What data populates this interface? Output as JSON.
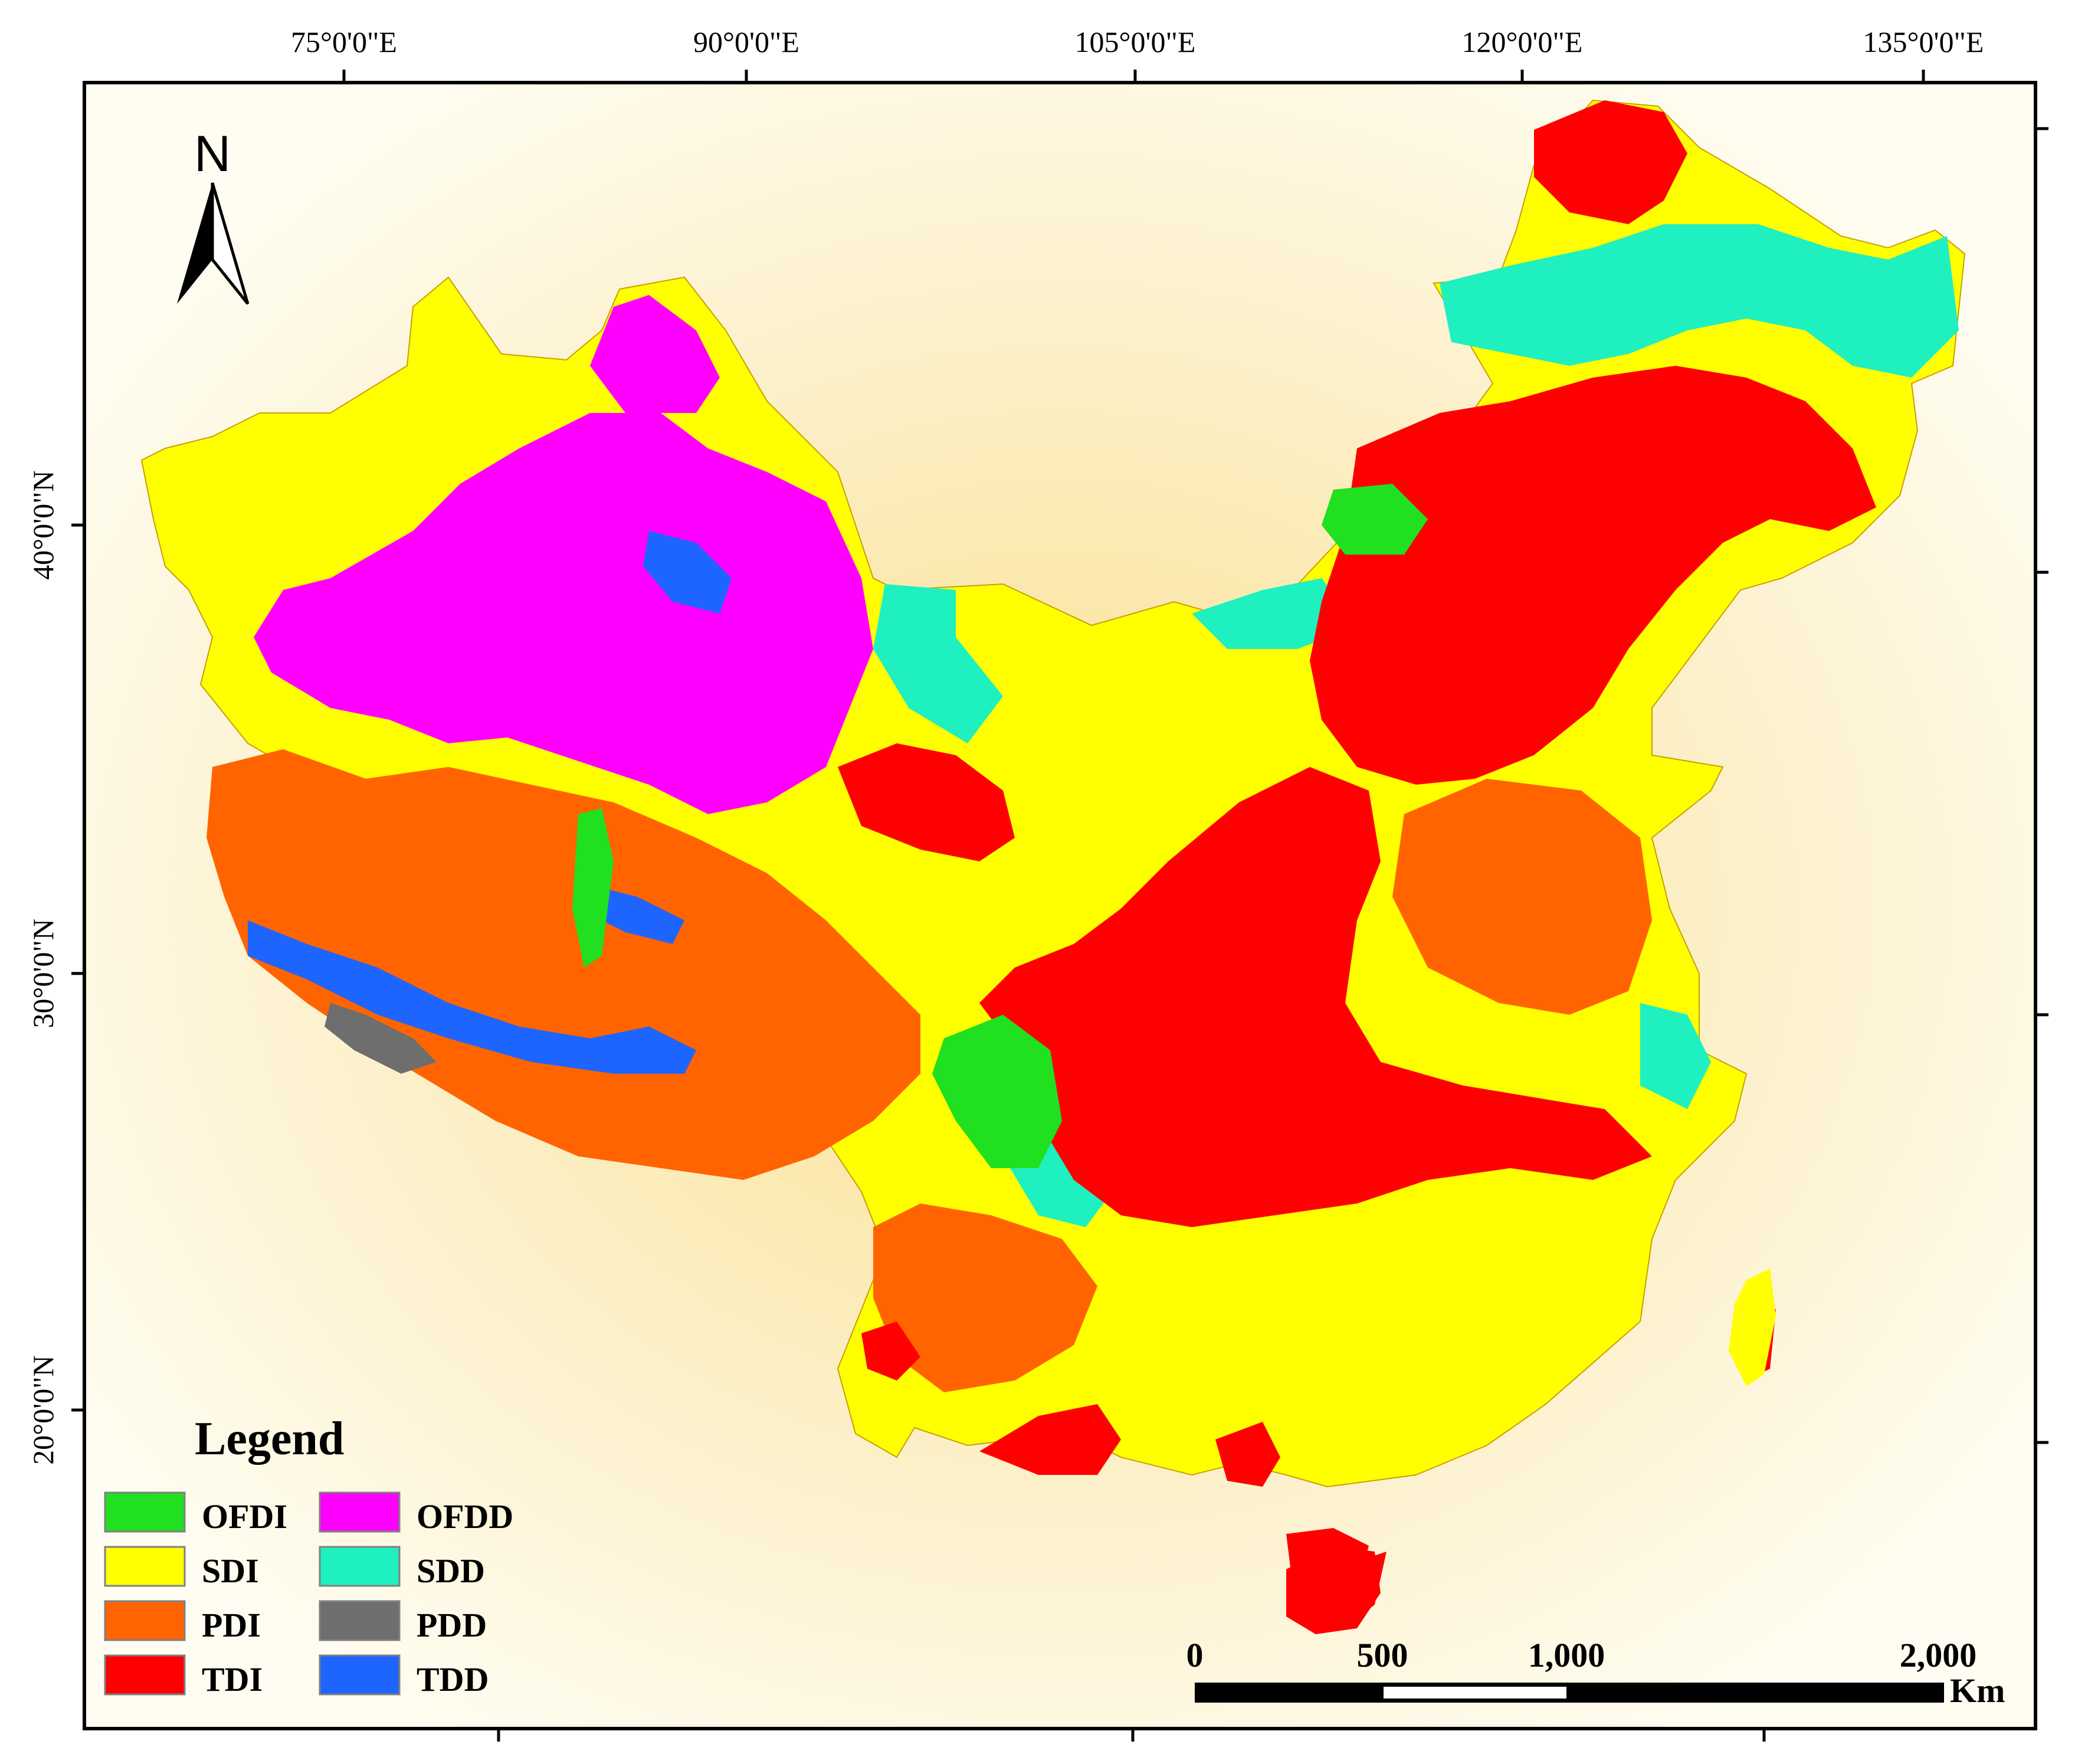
{
  "north_label": "N",
  "longitude_labels": [
    "75°0'0\"E",
    "90°0'0\"E",
    "105°0'0\"E",
    "120°0'0\"E",
    "135°0'0\"E"
  ],
  "latitude_labels": [
    "40°0'0\"N",
    "30°0'0\"N",
    "20°0'0\"N"
  ],
  "legend": {
    "title": "Legend",
    "items": [
      {
        "label": "OFDI",
        "color": "#20e020"
      },
      {
        "label": "SDI",
        "color": "#ffff00"
      },
      {
        "label": "PDI",
        "color": "#ff6400"
      },
      {
        "label": "TDI",
        "color": "#ff0000"
      },
      {
        "label": "OFDD",
        "color": "#ff00ff"
      },
      {
        "label": "SDD",
        "color": "#1ef0c0"
      },
      {
        "label": "PDD",
        "color": "#6e6e6e"
      },
      {
        "label": "TDD",
        "color": "#1e64ff"
      }
    ]
  },
  "scale_bar": {
    "ticks": [
      "0",
      "500",
      "1,000",
      "2,000"
    ],
    "unit": "Km"
  },
  "colors": {
    "background_glow": "#fbe7a4",
    "frame": "#000000"
  }
}
